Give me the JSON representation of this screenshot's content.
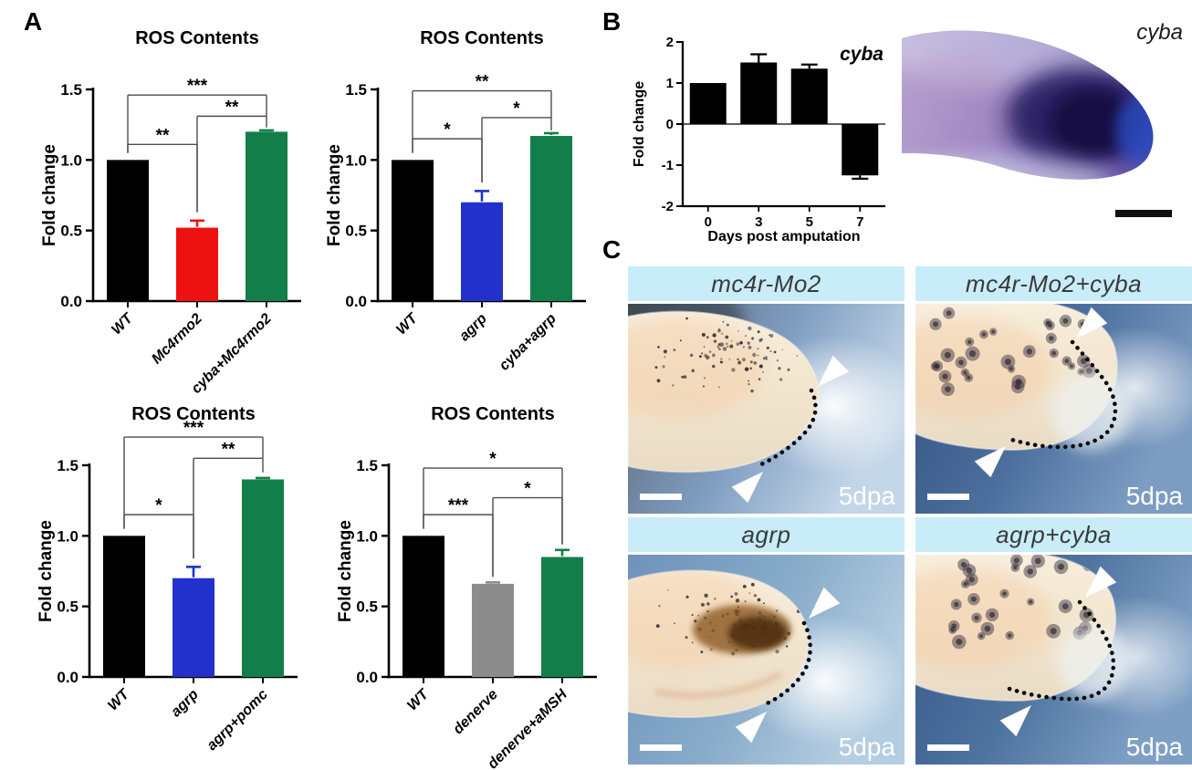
{
  "panels": {
    "A": {
      "label": "A"
    },
    "B": {
      "label": "B",
      "insitu_gene": "cyba"
    },
    "C": {
      "label": "C",
      "cells": [
        {
          "title": "mc4r-Mo2",
          "timepoint": "5dpa"
        },
        {
          "title": "mc4r-Mo2+cyba",
          "timepoint": "5dpa"
        },
        {
          "title": "agrp",
          "timepoint": "5dpa"
        },
        {
          "title": "agrp+cyba",
          "timepoint": "5dpa"
        }
      ]
    }
  },
  "colors": {
    "black_bar": "#000000",
    "red_bar": "#ee1111",
    "blue_bar": "#2231cc",
    "gray_bar": "#8c8c8c",
    "green_bar": "#127f4a",
    "c_header_bg": "#c8edf9"
  },
  "chart_data": [
    {
      "type": "bar",
      "style": "sig-bars",
      "title": "ROS Contents",
      "ylabel": "Fold change",
      "ylim": [
        0,
        1.5
      ],
      "yticks": [
        0,
        0.5,
        1,
        1.5
      ],
      "grid": false,
      "categories": [
        "WT",
        "Mc4rmo2",
        "cyba+Mc4rmo2"
      ],
      "values": [
        1.0,
        0.52,
        1.2
      ],
      "errors": [
        0,
        0.05,
        0.01
      ],
      "colors": [
        "#000000",
        "#ee1111",
        "#127f4a"
      ],
      "significance": [
        {
          "from": 0,
          "to": 1,
          "label": "**",
          "y": 1.11,
          "drop_from": 1.05,
          "drop_to": 0.63
        },
        {
          "from": 1,
          "to": 2,
          "label": "**",
          "y": 1.31,
          "drop_from": 0.63,
          "drop_to": 1.23
        },
        {
          "from": 0,
          "to": 2,
          "label": "***",
          "y": 1.46,
          "drop_from": 1.05,
          "drop_to": 1.31
        }
      ]
    },
    {
      "type": "bar",
      "style": "sig-bars",
      "title": "ROS Contents",
      "ylabel": "Fold change",
      "ylim": [
        0,
        1.5
      ],
      "yticks": [
        0,
        0.5,
        1,
        1.5
      ],
      "grid": false,
      "categories": [
        "WT",
        "agrp",
        "cyba+agrp"
      ],
      "values": [
        1.0,
        0.7,
        1.17
      ],
      "errors": [
        0,
        0.08,
        0.02
      ],
      "colors": [
        "#000000",
        "#2231cc",
        "#127f4a"
      ],
      "significance": [
        {
          "from": 0,
          "to": 1,
          "label": "*",
          "y": 1.15,
          "drop_from": 1.05,
          "drop_to": 0.84
        },
        {
          "from": 1,
          "to": 2,
          "label": "*",
          "y": 1.3,
          "drop_from": 0.84,
          "drop_to": 1.21
        },
        {
          "from": 0,
          "to": 2,
          "label": "**",
          "y": 1.49,
          "drop_from": 1.05,
          "drop_to": 1.3
        }
      ]
    },
    {
      "type": "bar",
      "style": "sig-bars",
      "title": "ROS Contents",
      "ylabel": "Fold change",
      "ylim": [
        0,
        1.5
      ],
      "yticks": [
        0,
        0.5,
        1,
        1.5
      ],
      "grid": false,
      "categories": [
        "WT",
        "agrp",
        "agrp+pomc"
      ],
      "values": [
        1.0,
        0.7,
        1.4
      ],
      "errors": [
        0,
        0.08,
        0.01
      ],
      "colors": [
        "#000000",
        "#2231cc",
        "#127f4a"
      ],
      "significance": [
        {
          "from": 0,
          "to": 1,
          "label": "*",
          "y": 1.15,
          "drop_from": 1.05,
          "drop_to": 0.84
        },
        {
          "from": 1,
          "to": 2,
          "label": "**",
          "y": 1.55,
          "drop_from": 0.84,
          "drop_to": 1.45
        },
        {
          "from": 0,
          "to": 2,
          "label": "***",
          "y": 1.7,
          "drop_from": 1.05,
          "drop_to": 1.55
        }
      ]
    },
    {
      "type": "bar",
      "style": "sig-bars",
      "title": "ROS Contents",
      "ylabel": "Fold change",
      "ylim": [
        0,
        1.5
      ],
      "yticks": [
        0,
        0.5,
        1,
        1.5
      ],
      "grid": false,
      "categories": [
        "WT",
        "denerve",
        "denerve+aMSH"
      ],
      "values": [
        1.0,
        0.66,
        0.85
      ],
      "errors": [
        0,
        0.01,
        0.05
      ],
      "colors": [
        "#000000",
        "#8c8c8c",
        "#127f4a"
      ],
      "significance": [
        {
          "from": 0,
          "to": 1,
          "label": "***",
          "y": 1.15,
          "drop_from": 1.05,
          "drop_to": 0.71
        },
        {
          "from": 1,
          "to": 2,
          "label": "*",
          "y": 1.27,
          "drop_from": 0.71,
          "drop_to": 0.94
        },
        {
          "from": 0,
          "to": 2,
          "label": "*",
          "y": 1.48,
          "drop_from": 1.05,
          "drop_to": 0.94
        }
      ]
    },
    {
      "type": "bar",
      "style": "timecourse",
      "title": "cyba",
      "ylabel": "Fold change",
      "xlabel": "Days post amputation",
      "ylim": [
        -2,
        2
      ],
      "yticks": [
        -2,
        -1,
        0,
        1,
        2
      ],
      "grid": false,
      "categories": [
        "0",
        "3",
        "5",
        "7"
      ],
      "values": [
        1.0,
        1.5,
        1.35,
        -1.25
      ],
      "errors": [
        0,
        0.2,
        0.1,
        0.08
      ],
      "colors": [
        "#000000",
        "#000000",
        "#000000",
        "#000000"
      ]
    }
  ]
}
